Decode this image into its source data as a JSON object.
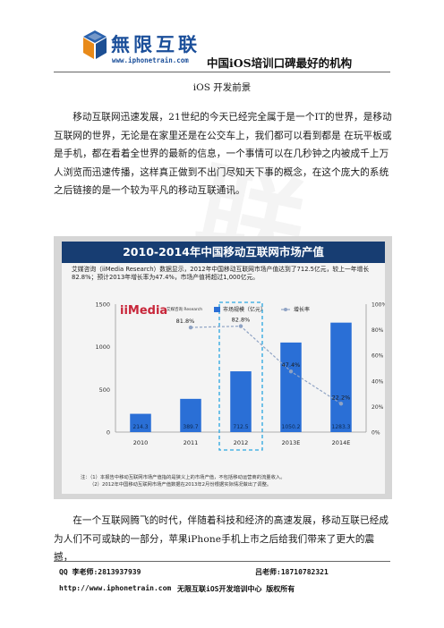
{
  "header": {
    "logo_name": "無限互联",
    "logo_url": "www.iphonetrain.com",
    "slogan": "中国iOS培训口碑最好的机构"
  },
  "page_title": "iOS 开发前景",
  "paragraphs": [
    "移动互联网迅速发展，21世纪的今天已经完全属于是一个IT的世界，是移动互联网的世界，无论是在家里还是在公交车上，我们都可以看到都是 在玩平板或是手机，都在看着全世界的最新的信息，一个事情可以在几秒钟之内被成千上万人浏览而迅速传播，这样真正做到不出门尽知天下事的概念，在这个庞大的系统之后链接的是一个较为平凡的移动互联通讯。",
    "在一个互联网腾飞的时代，伴随着科技和经济的高速发展，移动互联已经成为人们不可或缺的一部分，苹果iPhone手机上市之后给我们带来了更大的震撼，"
  ],
  "watermark": "联",
  "figure": {
    "title": "2010-2014年中国移动互联网市场产值",
    "description": "艾媒咨询（iiMedia Research）数据显示，2012年中国移动互联网市场产值达到了712.5亿元，较上一年增长82.8%；预计2013年增长率为47.4%，市场产值将超过1,000亿元。",
    "brand": "iiMedia",
    "brand_sub": "艾媒咨询 Research",
    "notes": [
      "注：（1）本报告中移动互联网市场产值指的是狭义上的市场产值，不包括移动运营商的流量收入。",
      "（2）2012年中国移动互联网市场产值数据在2013年2月份根据实际情况做出了调整。"
    ]
  },
  "chart_data": {
    "type": "bar",
    "title": "2010-2014年中国移动互联网市场产值",
    "categories": [
      "2010",
      "2011",
      "2012",
      "2013E",
      "2014E"
    ],
    "series": [
      {
        "name": "市场规模（亿元）",
        "values": [
          214.3,
          389.7,
          712.5,
          1050.2,
          1283.3
        ],
        "color": "#2a6fd6"
      },
      {
        "name": "增长率",
        "values": [
          null,
          81.8,
          82.8,
          47.4,
          22.2
        ],
        "labels": [
          "",
          "81.8%",
          "82.8%",
          "47.4%",
          "22.2%"
        ],
        "color": "#8fa3c4"
      }
    ],
    "ylim": [
      0,
      1500
    ],
    "yticks": [
      0,
      500,
      1000,
      1500
    ],
    "y2lim": [
      0,
      100
    ],
    "y2ticks": [
      "0%",
      "20%",
      "40%",
      "60%",
      "80%",
      "100%"
    ],
    "highlight_category": "2012",
    "highlight_color": "#2aa6e0",
    "grid": false,
    "legend_position": "top"
  },
  "footer": {
    "qq": "QQ    李老师:2813937939",
    "lv": "吕老师:18710782321",
    "url": "http://www.iphonetrain.com",
    "center": "无限互联iOS开发培训中心   版权所有"
  }
}
